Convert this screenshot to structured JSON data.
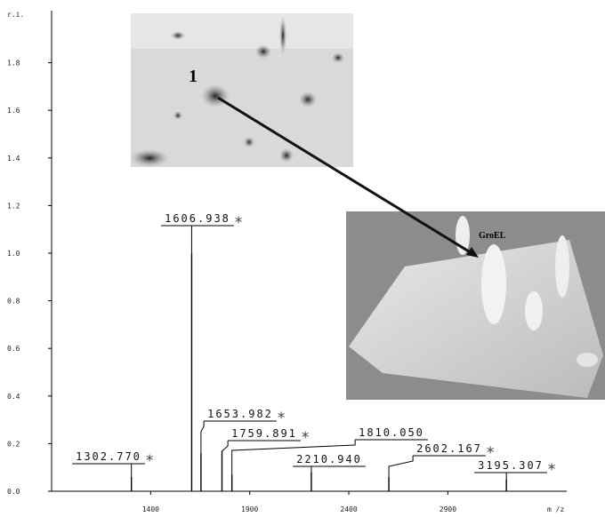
{
  "chart_data": {
    "type": "stem",
    "y_label": "r.i.",
    "x_label": "m /z",
    "x": [
      1302.77,
      1606.938,
      1653.982,
      1759.891,
      1810.05,
      2210.94,
      2602.167,
      3195.307
    ],
    "values": [
      0.06,
      1.0,
      0.16,
      0.17,
      0.07,
      0.08,
      0.06,
      0.05
    ],
    "peak_labels": [
      "1302.770",
      "1606.938",
      "1653.982",
      "1759.891",
      "1810.050",
      "2210.940",
      "2602.167",
      "3195.307"
    ],
    "starred": [
      true,
      true,
      true,
      true,
      false,
      false,
      true,
      true
    ],
    "star_text": "*",
    "color": "#000000",
    "xlim": [
      900,
      3500
    ],
    "ylim": [
      0,
      2.0
    ],
    "xticks": [
      1400,
      1900,
      2400,
      2900
    ],
    "yticks": [
      {
        "value": 0,
        "label": "0.0"
      },
      0.2,
      0.4,
      0.6,
      0.8,
      {
        "value": 1,
        "label": "1.0"
      },
      1.2,
      1.4,
      1.6,
      1.8
    ],
    "gel_spot_label": "1",
    "surface_label": "GroEL"
  }
}
